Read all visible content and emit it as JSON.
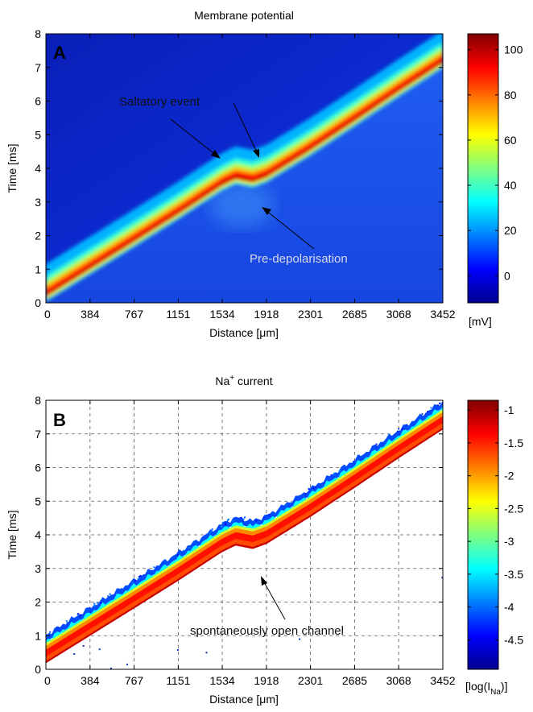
{
  "chart_data": [
    {
      "type": "heatmap",
      "panel_label": "A",
      "title": "Membrane potential",
      "xlabel": "Distance [μm]",
      "ylabel": "Time [ms]",
      "x_ticks": [
        "0",
        "384",
        "767",
        "1151",
        "1534",
        "1918",
        "2301",
        "2685",
        "3068",
        "3452"
      ],
      "x_tick_values": [
        0,
        384,
        767,
        1151,
        1534,
        1918,
        2301,
        2685,
        3068,
        3452
      ],
      "xlim": [
        0,
        3452
      ],
      "y_ticks": [
        "0",
        "1",
        "2",
        "3",
        "4",
        "5",
        "6",
        "7",
        "8"
      ],
      "ylim": [
        0,
        8
      ],
      "grid": false,
      "colorbar": {
        "label": "[mV]",
        "ticks": [
          "100",
          "80",
          "60",
          "40",
          "20",
          "0"
        ],
        "tick_values": [
          100,
          80,
          60,
          40,
          20,
          0
        ],
        "range": [
          -12,
          107
        ],
        "colormap": "jet"
      },
      "wave_front": {
        "x": [
          0,
          400,
          800,
          1150,
          1530,
          1650,
          1800,
          1920,
          2300,
          2700,
          3070,
          3452
        ],
        "t": [
          0.2,
          1.05,
          1.9,
          2.65,
          3.5,
          3.7,
          3.6,
          3.75,
          4.55,
          5.45,
          6.3,
          7.15
        ]
      },
      "annotations": [
        {
          "text": "Saltatory event"
        },
        {
          "text": "Pre-depolarisation"
        }
      ]
    },
    {
      "type": "heatmap",
      "panel_label": "B",
      "title": "Na",
      "title_superscript": "+",
      "title_suffix": " current",
      "xlabel": "Distance [μm]",
      "ylabel": "Time [ms]",
      "x_ticks": [
        "0",
        "384",
        "767",
        "1151",
        "1534",
        "1918",
        "2301",
        "2685",
        "3068",
        "3452"
      ],
      "x_tick_values": [
        0,
        384,
        767,
        1151,
        1534,
        1918,
        2301,
        2685,
        3068,
        3452
      ],
      "xlim": [
        0,
        3452
      ],
      "y_ticks": [
        "0",
        "1",
        "2",
        "3",
        "4",
        "5",
        "6",
        "7",
        "8"
      ],
      "ylim": [
        0,
        8
      ],
      "grid": true,
      "colorbar": {
        "label_prefix": "[log(I",
        "label_sub": "Na",
        "label_suffix": ")]",
        "ticks": [
          "-1",
          "-1.5",
          "-2",
          "-2.5",
          "-3",
          "-3.5",
          "-4",
          "-4.5"
        ],
        "tick_values": [
          -1,
          -1.5,
          -2,
          -2.5,
          -3,
          -3.5,
          -4,
          -4.5
        ],
        "range": [
          -4.95,
          -0.85
        ],
        "colormap": "jet"
      },
      "wave_front": {
        "x": [
          0,
          400,
          800,
          1150,
          1530,
          1650,
          1800,
          1920,
          2300,
          2700,
          3070,
          3452
        ],
        "t": [
          0.2,
          1.05,
          1.9,
          2.65,
          3.5,
          3.7,
          3.6,
          3.75,
          4.55,
          5.45,
          6.3,
          7.15
        ]
      },
      "annotations": [
        {
          "text": "spontaneously open channel"
        }
      ]
    }
  ]
}
